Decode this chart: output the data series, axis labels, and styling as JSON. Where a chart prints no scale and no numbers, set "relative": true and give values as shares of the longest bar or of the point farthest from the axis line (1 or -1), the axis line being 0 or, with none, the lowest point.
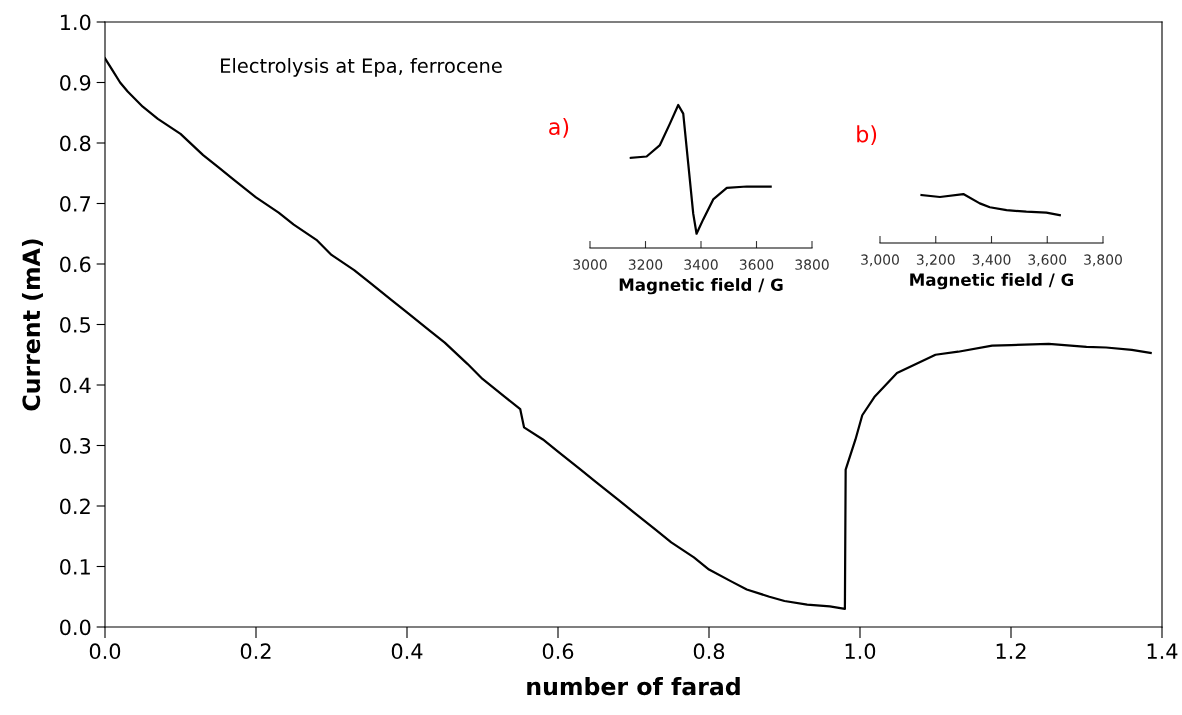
{
  "chart_data": [
    {
      "type": "line",
      "xlabel": "number of farad",
      "ylabel": "Current (mA)",
      "annotations": [
        "Electrolysis at Epa, ferrocene"
      ],
      "color": "#000000",
      "grid": false,
      "marker": "none",
      "line_style": "solid",
      "xlim": [
        0,
        1.4
      ],
      "xticks": [
        {
          "value": 0,
          "label": "0.0"
        },
        {
          "value": 0.2,
          "label": "0.2"
        },
        {
          "value": 0.4,
          "label": "0.4"
        },
        {
          "value": 0.6,
          "label": "0.6"
        },
        {
          "value": 0.8,
          "label": "0.8"
        },
        {
          "value": 1.0,
          "label": "1.0"
        },
        {
          "value": 1.2,
          "label": "1.2"
        },
        {
          "value": 1.4,
          "label": "1.4"
        }
      ],
      "ylim": [
        0,
        1.0
      ],
      "yticks": [
        {
          "value": 0,
          "label": "0.0"
        },
        0.1,
        0.2,
        0.3,
        0.4,
        0.5,
        0.6,
        0.7,
        0.8,
        0.9,
        {
          "value": 1.0,
          "label": "1.0"
        }
      ],
      "x": [
        0,
        0.01,
        0.02,
        0.03,
        0.05,
        0.07,
        0.1,
        0.13,
        0.15,
        0.17,
        0.2,
        0.23,
        0.25,
        0.28,
        0.3,
        0.33,
        0.35,
        0.38,
        0.4,
        0.43,
        0.45,
        0.48,
        0.5,
        0.53,
        0.55,
        0.555,
        0.58,
        0.6,
        0.63,
        0.65,
        0.68,
        0.7,
        0.73,
        0.75,
        0.78,
        0.8,
        0.83,
        0.85,
        0.88,
        0.9,
        0.93,
        0.96,
        0.98,
        0.981,
        0.994,
        1.003,
        1.019,
        1.049,
        1.1,
        1.13,
        1.175,
        1.2,
        1.25,
        1.3,
        1.326,
        1.36,
        1.385
      ],
      "values": [
        0.94,
        0.92,
        0.9,
        0.885,
        0.86,
        0.84,
        0.815,
        0.78,
        0.76,
        0.74,
        0.71,
        0.685,
        0.665,
        0.64,
        0.615,
        0.59,
        0.57,
        0.54,
        0.52,
        0.49,
        0.47,
        0.435,
        0.41,
        0.38,
        0.36,
        0.33,
        0.31,
        0.29,
        0.26,
        0.24,
        0.21,
        0.19,
        0.16,
        0.14,
        0.115,
        0.095,
        0.075,
        0.062,
        0.05,
        0.043,
        0.037,
        0.034,
        0.03,
        0.26,
        0.31,
        0.35,
        0.38,
        0.42,
        0.45,
        0.455,
        0.465,
        0.466,
        0.468,
        0.463,
        0.462,
        0.458,
        0.453
      ]
    },
    {
      "type": "line",
      "relative": true,
      "xlabel": "Magnetic field / G",
      "annotations": [
        "a)"
      ],
      "color": "#000000",
      "marker": "none",
      "line_style": "solid",
      "tick_labels": "x",
      "xlim": [
        3000,
        3800
      ],
      "xticks": [
        3000,
        3200,
        3400,
        3600,
        3800
      ],
      "x": [
        3147,
        3204,
        3252,
        3288,
        3318,
        3336,
        3354,
        3372,
        3384,
        3408,
        3444,
        3493,
        3565,
        3651
      ],
      "values": [
        0.63,
        0.64,
        0.72,
        0.87,
        1.0,
        0.94,
        0.59,
        0.24,
        0.1,
        0.2,
        0.34,
        0.42,
        0.43,
        0.43
      ]
    },
    {
      "type": "line",
      "relative": true,
      "xlabel": "Magnetic field / G",
      "annotations": [
        "b)"
      ],
      "color": "#000000",
      "marker": "none",
      "line_style": "solid",
      "tick_labels": "x",
      "xlim": [
        3000,
        3800
      ],
      "xticks": [
        {
          "value": 3000,
          "label": "3,000"
        },
        {
          "value": 3200,
          "label": "3,200"
        },
        {
          "value": 3400,
          "label": "3,400"
        },
        {
          "value": 3600,
          "label": "3,600"
        },
        {
          "value": 3800,
          "label": "3,800"
        }
      ],
      "x": [
        3149,
        3215,
        3299,
        3358,
        3394,
        3454,
        3525,
        3597,
        3645
      ],
      "values": [
        0.98,
        0.94,
        1.0,
        0.81,
        0.73,
        0.67,
        0.64,
        0.62,
        0.57
      ]
    }
  ]
}
